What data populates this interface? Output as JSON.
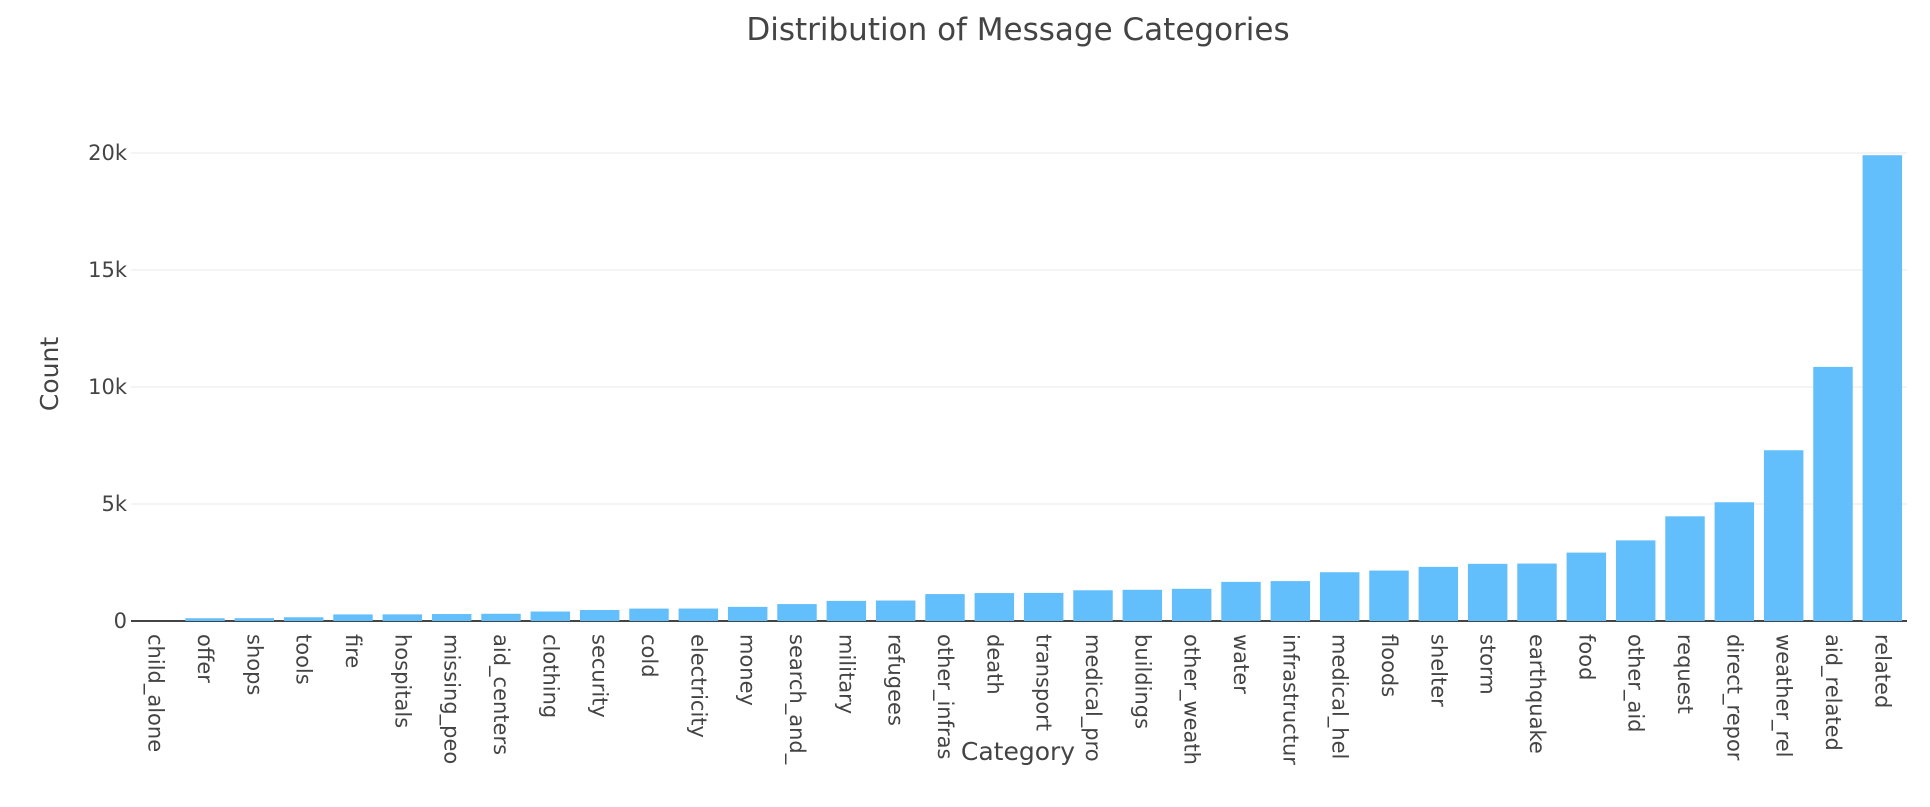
{
  "chart_data": {
    "type": "bar",
    "title": "Distribution of Message Categories",
    "x_label": "Category",
    "y_label": "Count",
    "categories": [
      "child_alone",
      "offer",
      "shops",
      "tools",
      "fire",
      "hospitals",
      "missing_peo",
      "aid_centers",
      "clothing",
      "security",
      "cold",
      "electricity",
      "money",
      "search_and_",
      "military",
      "refugees",
      "other_infras",
      "death",
      "transport",
      "medical_pro",
      "buildings",
      "other_weath",
      "water",
      "infrastructur",
      "medical_hel",
      "floods",
      "shelter",
      "storm",
      "earthquake",
      "food",
      "other_aid",
      "request",
      "direct_repor",
      "weather_rel",
      "aid_related",
      "related"
    ],
    "values": [
      0,
      118,
      120,
      159,
      282,
      283,
      298,
      309,
      405,
      471,
      530,
      532,
      604,
      724,
      860,
      875,
      1151,
      1194,
      1201,
      1313,
      1333,
      1376,
      1672,
      1705,
      2084,
      2155,
      2314,
      2443,
      2455,
      2923,
      3446,
      4474,
      5075,
      7297,
      10860,
      19906
    ],
    "color": "#63befc",
    "ylim": [
      0,
      20900
    ],
    "yticks": [
      0,
      {
        "value": 5000,
        "label": "5k"
      },
      {
        "value": 10000,
        "label": "10k"
      },
      {
        "value": 15000,
        "label": "15k"
      },
      {
        "value": 20000,
        "label": "20k"
      }
    ],
    "grid": true
  }
}
